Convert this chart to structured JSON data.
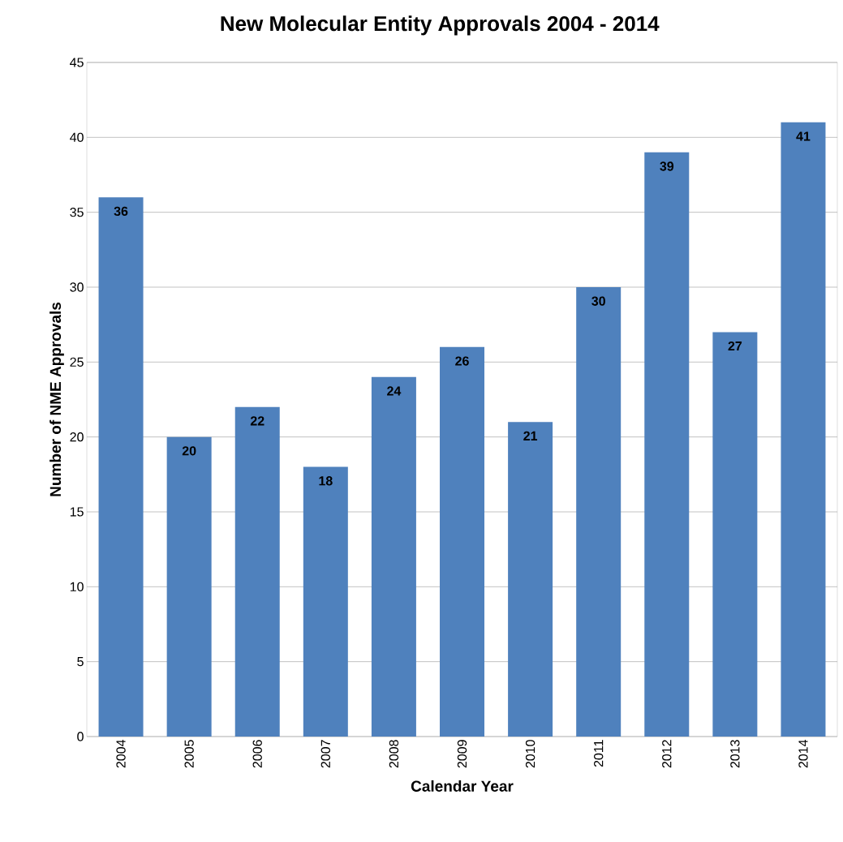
{
  "chart_data": {
    "type": "bar",
    "title": "New Molecular Entity Approvals 2004 - 2014",
    "xlabel": "Calendar Year",
    "ylabel": "Number of NME Approvals",
    "categories": [
      "2004",
      "2005",
      "2006",
      "2007",
      "2008",
      "2009",
      "2010",
      "2011",
      "2012",
      "2013",
      "2014"
    ],
    "values": [
      36,
      20,
      22,
      18,
      24,
      26,
      21,
      30,
      39,
      27,
      41
    ],
    "color": "#4f81bd",
    "ylim": [
      0,
      45
    ],
    "yticks": [
      0,
      5,
      10,
      15,
      20,
      25,
      30,
      35,
      40,
      45
    ],
    "grid": "y",
    "data_labels": true
  }
}
